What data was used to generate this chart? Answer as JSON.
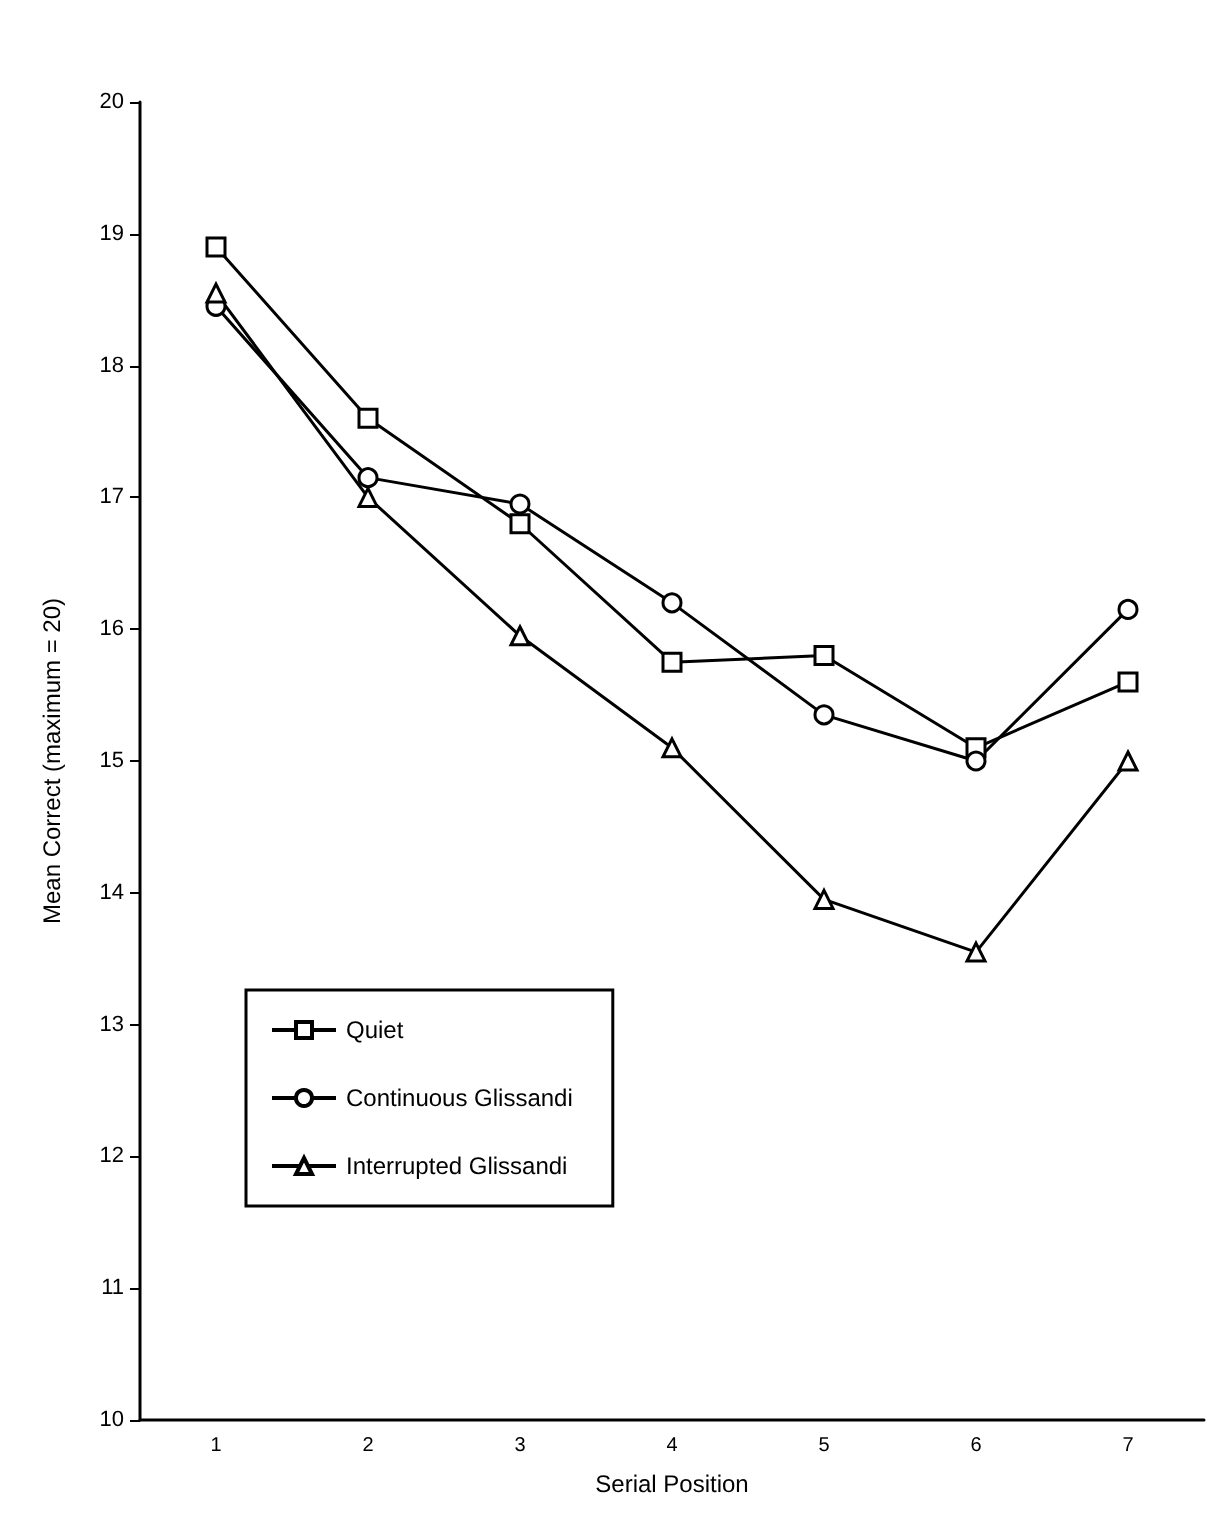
{
  "chart_data": {
    "type": "line",
    "xlabel": "Serial Position",
    "ylabel": "Mean Correct (maximum = 20)",
    "categories": [
      "1",
      "2",
      "3",
      "4",
      "5",
      "6",
      "7"
    ],
    "ylim": [
      10,
      20
    ],
    "yticks": [
      10,
      11,
      12,
      13,
      14,
      15,
      16,
      17,
      18,
      19,
      20
    ],
    "grid": false,
    "legend": "bottom left",
    "line_style": "solid",
    "series": [
      {
        "name": "Quiet",
        "color": "#000000",
        "marker": "square",
        "values": [
          18.9,
          17.6,
          16.8,
          15.75,
          15.8,
          15.1,
          15.6
        ]
      },
      {
        "name": "Continuous Glissandi",
        "color": "#000000",
        "marker": "circle",
        "values": [
          18.45,
          17.15,
          16.95,
          16.2,
          15.35,
          15.0,
          16.15
        ]
      },
      {
        "name": "Interrupted Glissandi",
        "color": "#000000",
        "marker": "triangle",
        "values": [
          18.55,
          17.0,
          15.95,
          15.1,
          13.95,
          13.55,
          15.0
        ]
      }
    ]
  }
}
